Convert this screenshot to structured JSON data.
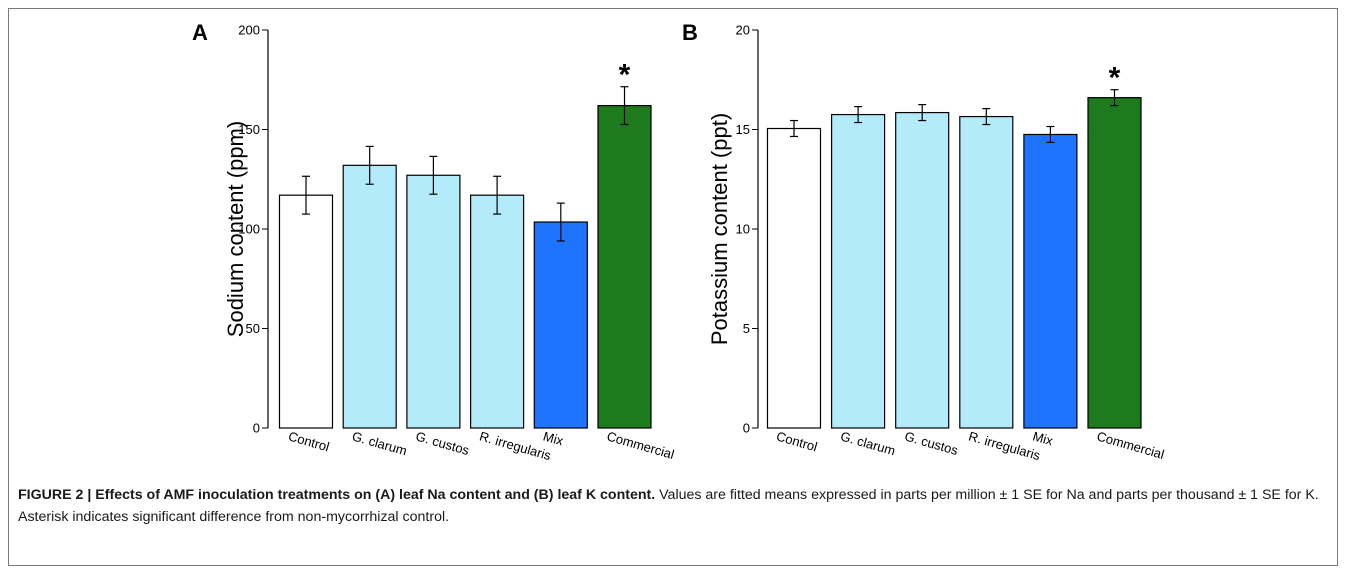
{
  "chart_data": [
    {
      "panel_label": "A",
      "type": "bar",
      "categories": [
        "Control",
        "G. clarum",
        "G. custos",
        "R. irregularis",
        "Mix",
        "Commercial"
      ],
      "values": [
        117,
        132,
        127,
        117,
        103.5,
        162
      ],
      "errors": [
        9.5,
        9.5,
        9.5,
        9.5,
        9.5,
        9.5
      ],
      "colors": [
        "#ffffff",
        "#b3ebfb",
        "#b3ebfb",
        "#b3ebfb",
        "#1f74ff",
        "#1d7a1d"
      ],
      "ylabel": "Sodium content (ppm)",
      "ylim": [
        0,
        200
      ],
      "yticks": [
        0,
        50,
        100,
        150,
        200
      ],
      "significant": [
        false,
        false,
        false,
        false,
        false,
        true
      ],
      "significance_marker": "*"
    },
    {
      "panel_label": "B",
      "type": "bar",
      "categories": [
        "Control",
        "G. clarum",
        "G. custos",
        "R. irregularis",
        "Mix",
        "Commercial"
      ],
      "values": [
        15.05,
        15.75,
        15.85,
        15.65,
        14.75,
        16.6
      ],
      "errors": [
        0.4,
        0.4,
        0.4,
        0.4,
        0.4,
        0.4
      ],
      "colors": [
        "#ffffff",
        "#b3ebfb",
        "#b3ebfb",
        "#b3ebfb",
        "#1f74ff",
        "#1d7a1d"
      ],
      "ylabel": "Potassium content (ppt)",
      "ylim": [
        0,
        20
      ],
      "yticks": [
        0,
        5,
        10,
        15,
        20
      ],
      "significant": [
        false,
        false,
        false,
        false,
        false,
        true
      ],
      "significance_marker": "*"
    }
  ],
  "caption": {
    "bold": "FIGURE 2 | Effects of AMF inoculation treatments on (A) leaf Na content and (B) leaf K content.",
    "text": " Values are fitted means expressed in parts per million ± 1 SE for Na and parts per thousand ± 1 SE for K. Asterisk indicates significant difference from non-mycorrhizal control."
  }
}
